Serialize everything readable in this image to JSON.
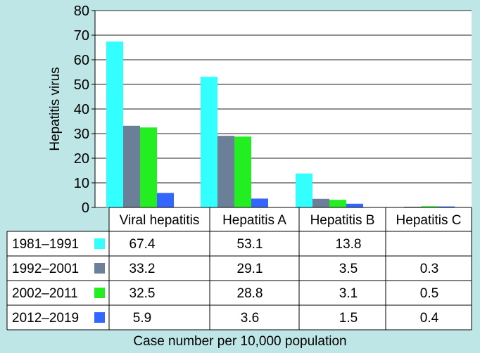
{
  "chart_data": {
    "type": "bar",
    "title": "",
    "ylabel": "Hepatitis virus",
    "xlabel": "Case number per 10,000 population",
    "ylim": [
      0,
      80
    ],
    "yticks": [
      0,
      10,
      20,
      30,
      40,
      50,
      60,
      70,
      80
    ],
    "grid": true,
    "categories": [
      "Viral hepatitis",
      "Hepatitis A",
      "Hepatitis B",
      "Hepatitis C"
    ],
    "series": [
      {
        "name": "1981–1991",
        "color": "#33ffff",
        "values": [
          67.4,
          53.1,
          13.8,
          null
        ],
        "labels": [
          "67.4",
          "53.1",
          "13.8",
          ""
        ]
      },
      {
        "name": "1992–2001",
        "color": "#6b7f99",
        "values": [
          33.2,
          29.1,
          3.5,
          0.3
        ],
        "labels": [
          "33.2",
          "29.1",
          "3.5",
          "0.3"
        ]
      },
      {
        "name": "2002–2011",
        "color": "#22ee22",
        "values": [
          32.5,
          28.8,
          3.1,
          0.5
        ],
        "labels": [
          "32.5",
          "28.8",
          "3.1",
          "0.5"
        ]
      },
      {
        "name": "2012–2019",
        "color": "#3366ff",
        "values": [
          5.9,
          3.6,
          1.5,
          0.4
        ],
        "labels": [
          "5.9",
          "3.6",
          "1.5",
          "0.4"
        ]
      }
    ]
  }
}
